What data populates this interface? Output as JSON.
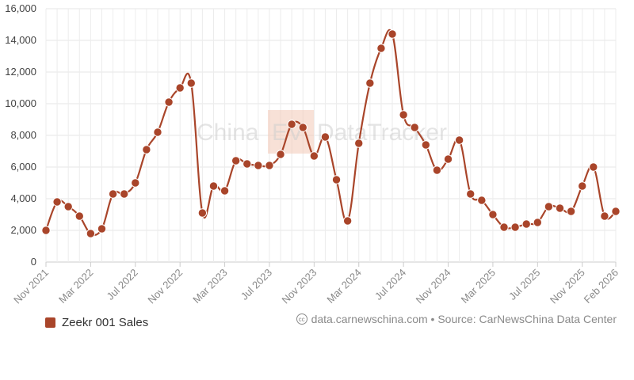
{
  "chart_data": {
    "type": "line",
    "title": "",
    "xlabel": "",
    "ylabel": "",
    "ylim": [
      0,
      16000
    ],
    "yticks": [
      0,
      2000,
      4000,
      6000,
      8000,
      10000,
      12000,
      14000,
      16000
    ],
    "ytick_labels": [
      "0",
      "2,000",
      "4,000",
      "6,000",
      "8,000",
      "10,000",
      "12,000",
      "14,000",
      "16,000"
    ],
    "x": [
      "Nov 2021",
      "Dec 2021",
      "Jan 2022",
      "Feb 2022",
      "Mar 2022",
      "Apr 2022",
      "May 2022",
      "Jun 2022",
      "Jul 2022",
      "Aug 2022",
      "Sep 2022",
      "Oct 2022",
      "Nov 2022",
      "Dec 2022",
      "Jan 2023",
      "Feb 2023",
      "Mar 2023",
      "Apr 2023",
      "May 2023",
      "Jun 2023",
      "Jul 2023",
      "Aug 2023",
      "Sep 2023",
      "Oct 2023",
      "Nov 2023",
      "Dec 2023",
      "Jan 2024",
      "Feb 2024",
      "Mar 2024",
      "Apr 2024",
      "May 2024",
      "Jun 2024",
      "Jul 2024",
      "Aug 2024",
      "Sep 2024",
      "Oct 2024",
      "Nov 2024",
      "Dec 2024",
      "Jan 2025",
      "Feb 2025",
      "Mar 2025",
      "Apr 2025",
      "May 2025",
      "Jun 2025",
      "Jul 2025",
      "Aug 2025",
      "Sep 2025",
      "Oct 2025",
      "Nov 2025",
      "Dec 2025",
      "Jan 2026",
      "Feb 2026"
    ],
    "xtick_labels": [
      "Nov 2021",
      "Mar 2022",
      "Jul 2022",
      "Nov 2022",
      "Mar 2023",
      "Jul 2023",
      "Nov 2023",
      "Mar 2024",
      "Jul 2024",
      "Nov 2024",
      "Mar 2025",
      "Jul 2025",
      "Nov 2025",
      "Feb 2026"
    ],
    "series": [
      {
        "name": "Zeekr 001 Sales",
        "color": "#a9452a",
        "values": [
          2000,
          3800,
          3500,
          2900,
          1800,
          2100,
          4300,
          4300,
          5000,
          7100,
          8200,
          10100,
          11000,
          11300,
          3100,
          4800,
          4500,
          6400,
          6200,
          6100,
          6100,
          6800,
          8700,
          8500,
          6700,
          7900,
          5200,
          2600,
          7500,
          11300,
          13500,
          14400,
          9300,
          8500,
          7400,
          5800,
          6500,
          7700,
          4300,
          3900,
          3000,
          2200,
          2200,
          2400,
          2500,
          3500,
          3400,
          3200,
          4800,
          6000,
          2900,
          3200
        ]
      }
    ],
    "legend": "bottom-left"
  },
  "watermark": {
    "left_text": "China",
    "box_text": "EV",
    "right_text": "DataTracker"
  },
  "source": {
    "icon": "cc-icon",
    "text": "data.carnewschina.com • Source: CarNewsChina Data Center"
  }
}
